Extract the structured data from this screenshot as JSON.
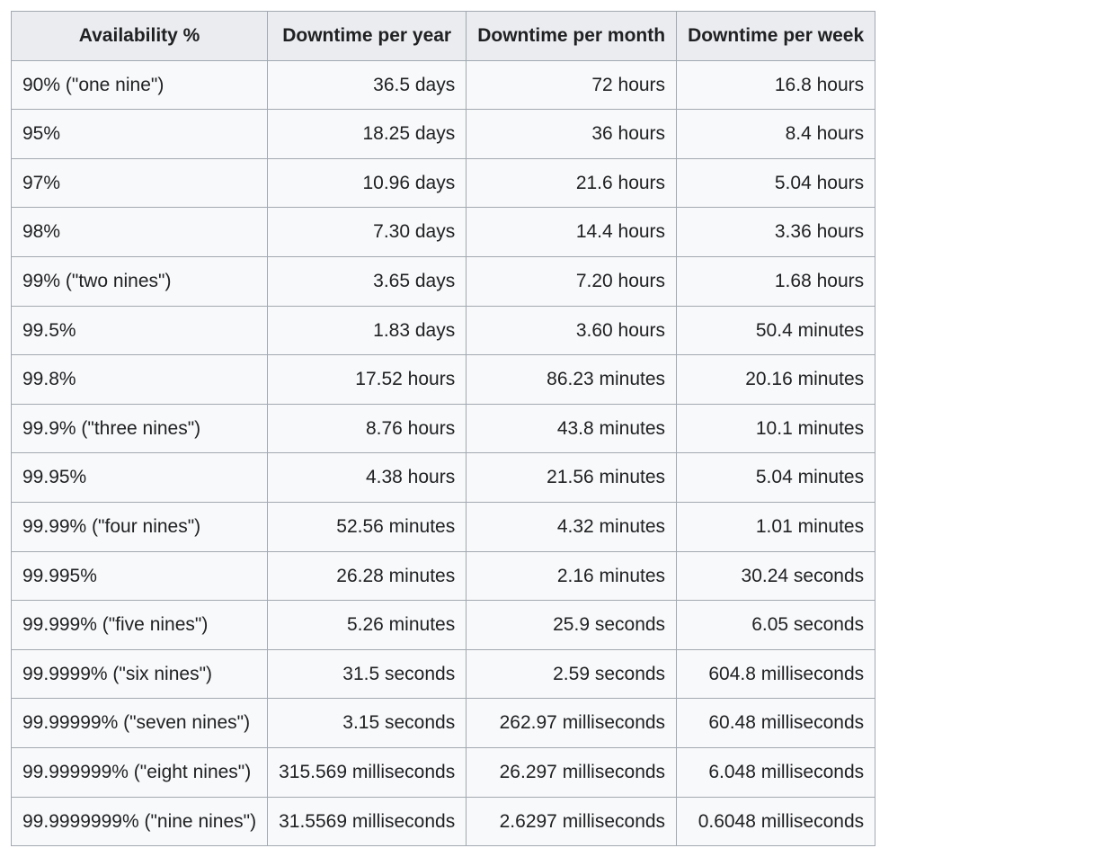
{
  "table": {
    "type": "table",
    "background_color": "#f8f9fa",
    "header_background_color": "#eaecf0",
    "border_color": "#a2a9b1",
    "text_color": "#202122",
    "font_size": 21,
    "columns": [
      {
        "label": "Availability %",
        "align_header": "center",
        "align_cells": "left"
      },
      {
        "label": "Downtime per year",
        "align_header": "center",
        "align_cells": "right"
      },
      {
        "label": "Downtime per month",
        "align_header": "center",
        "align_cells": "right"
      },
      {
        "label": "Downtime per week",
        "align_header": "center",
        "align_cells": "right"
      }
    ],
    "rows": [
      [
        "90% (\"one nine\")",
        "36.5 days",
        "72 hours",
        "16.8 hours"
      ],
      [
        "95%",
        "18.25 days",
        "36 hours",
        "8.4 hours"
      ],
      [
        "97%",
        "10.96 days",
        "21.6 hours",
        "5.04 hours"
      ],
      [
        "98%",
        "7.30 days",
        "14.4 hours",
        "3.36 hours"
      ],
      [
        "99% (\"two nines\")",
        "3.65 days",
        "7.20 hours",
        "1.68 hours"
      ],
      [
        "99.5%",
        "1.83 days",
        "3.60 hours",
        "50.4 minutes"
      ],
      [
        "99.8%",
        "17.52 hours",
        "86.23 minutes",
        "20.16 minutes"
      ],
      [
        "99.9% (\"three nines\")",
        "8.76 hours",
        "43.8 minutes",
        "10.1 minutes"
      ],
      [
        "99.95%",
        "4.38 hours",
        "21.56 minutes",
        "5.04 minutes"
      ],
      [
        "99.99% (\"four nines\")",
        "52.56 minutes",
        "4.32 minutes",
        "1.01 minutes"
      ],
      [
        "99.995%",
        "26.28 minutes",
        "2.16 minutes",
        "30.24 seconds"
      ],
      [
        "99.999% (\"five nines\")",
        "5.26 minutes",
        "25.9 seconds",
        "6.05 seconds"
      ],
      [
        "99.9999% (\"six nines\")",
        "31.5 seconds",
        "2.59 seconds",
        "604.8 milliseconds"
      ],
      [
        "99.99999% (\"seven nines\")",
        "3.15 seconds",
        "262.97 milliseconds",
        "60.48 milliseconds"
      ],
      [
        "99.999999% (\"eight nines\")",
        "315.569 milliseconds",
        "26.297 milliseconds",
        "6.048 milliseconds"
      ],
      [
        "99.9999999% (\"nine nines\")",
        "31.5569 milliseconds",
        "2.6297 milliseconds",
        "0.6048 milliseconds"
      ]
    ]
  }
}
